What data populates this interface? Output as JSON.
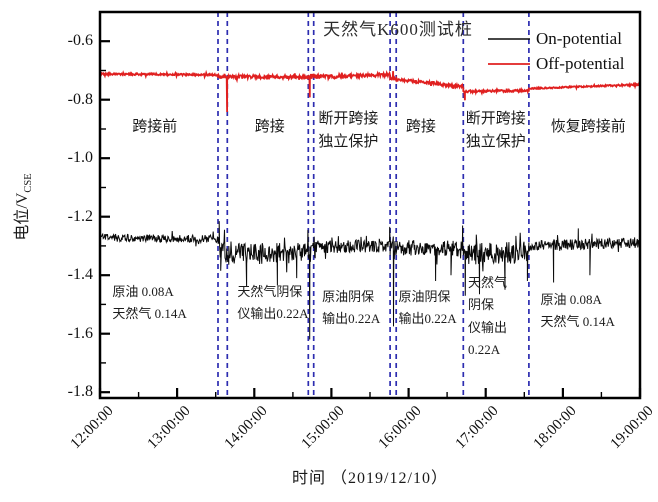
{
  "chart_data": {
    "type": "line",
    "title": "天然气K600测试桩",
    "xlabel": "时间 （2019/12/10）",
    "ylabel": "电位/V_CSE",
    "ylabel_main": "电位/V",
    "ylabel_sub": "CSE",
    "x_unit": "time HH:MM:SS",
    "xlim": [
      12,
      19
    ],
    "ylim": [
      -1.82,
      -0.5
    ],
    "grid": false,
    "x_tick_values": [
      12,
      13,
      14,
      15,
      16,
      17,
      18,
      19
    ],
    "x_tick_labels": [
      "12:00:00",
      "13:00:00",
      "14:00:00",
      "15:00:00",
      "16:00:00",
      "17:00:00",
      "18:00:00",
      "19:00:00"
    ],
    "x_minor_tick_values": [
      12.5,
      13.5,
      14.5,
      15.5,
      16.5,
      17.5,
      18.5
    ],
    "y_tick_values": [
      -0.6,
      -0.8,
      -1.0,
      -1.2,
      -1.4,
      -1.6,
      -1.8
    ],
    "y_tick_labels": [
      "-0.6",
      "-0.8",
      "-1.0",
      "-1.2",
      "-1.4",
      "-1.6",
      "-1.8"
    ],
    "y_minor_tick_values": [
      -0.7,
      -0.9,
      -1.1,
      -1.3,
      -1.5,
      -1.7
    ],
    "legend": {
      "position": "top-right",
      "entries": [
        {
          "label": "On-potential",
          "color": "#0a0a0a"
        },
        {
          "label": "Off-potential",
          "color": "#e02020"
        }
      ]
    },
    "boundary_lines": {
      "style": "dashed",
      "color": "#2d2db0",
      "times": [
        13.53,
        13.65,
        14.7,
        14.77,
        15.76,
        15.84,
        16.71,
        17.56
      ]
    },
    "phases": [
      {
        "lines": [
          "跨接前"
        ],
        "t": 12.71,
        "v": -0.895
      },
      {
        "lines": [
          "跨接"
        ],
        "t": 14.2,
        "v": -0.895
      },
      {
        "lines": [
          "断开跨接",
          "独立保护"
        ],
        "t": 15.22,
        "v": -0.906
      },
      {
        "lines": [
          "跨接"
        ],
        "t": 16.16,
        "v": -0.895
      },
      {
        "lines": [
          "断开跨接",
          "独立保护"
        ],
        "t": 17.13,
        "v": -0.906
      },
      {
        "lines": [
          "恢复跨接前"
        ],
        "t": 18.33,
        "v": -0.895
      }
    ],
    "annotations": [
      {
        "lines": [
          "原油  0.08A",
          "天然气  0.14A"
        ],
        "t": 12.16,
        "v": -1.457
      },
      {
        "lines": [
          "天然气阴保",
          "仪输出0.22A"
        ],
        "t": 13.78,
        "v": -1.457
      },
      {
        "lines": [
          "原油阴保",
          "输出0.22A"
        ],
        "t": 14.88,
        "v": -1.474
      },
      {
        "lines": [
          "原油阴保",
          "输出0.22A"
        ],
        "t": 15.87,
        "v": -1.474
      },
      {
        "lines": [
          "天然气",
          "阴保",
          "仪输出",
          "0.22A"
        ],
        "t": 16.77,
        "v": -1.426
      },
      {
        "lines": [
          "原油  0.08A",
          "天然气  0.14A"
        ],
        "t": 17.71,
        "v": -1.485
      }
    ],
    "series": [
      {
        "name": "On-potential",
        "color": "#0a0a0a",
        "width": 1,
        "seed": 11,
        "segments": [
          {
            "t0": 12.0,
            "t1": 13.53,
            "v0": -1.272,
            "v1": -1.276,
            "noise": 0.013
          },
          {
            "t0": 13.53,
            "t1": 13.67,
            "v0": -1.3,
            "v1": -1.33,
            "noise": 0.035
          },
          {
            "t0": 13.67,
            "t1": 14.7,
            "v0": -1.328,
            "v1": -1.322,
            "noise": 0.036
          },
          {
            "t0": 14.7,
            "t1": 14.79,
            "v0": -1.315,
            "v1": -1.3,
            "noise": 0.045
          },
          {
            "t0": 14.79,
            "t1": 15.76,
            "v0": -1.303,
            "v1": -1.3,
            "noise": 0.022
          },
          {
            "t0": 15.76,
            "t1": 15.85,
            "v0": -1.3,
            "v1": -1.31,
            "noise": 0.045
          },
          {
            "t0": 15.85,
            "t1": 16.71,
            "v0": -1.305,
            "v1": -1.312,
            "noise": 0.027
          },
          {
            "t0": 16.71,
            "t1": 17.56,
            "v0": -1.33,
            "v1": -1.322,
            "noise": 0.038
          },
          {
            "t0": 17.56,
            "t1": 19.0,
            "v0": -1.3,
            "v1": -1.288,
            "noise": 0.018
          }
        ],
        "spikes": [
          {
            "t": 13.545,
            "v": -1.215
          },
          {
            "t": 13.565,
            "v": -1.385
          },
          {
            "t": 13.9,
            "v": -1.44
          },
          {
            "t": 14.3,
            "v": -1.435
          },
          {
            "t": 14.55,
            "v": -1.41
          },
          {
            "t": 14.695,
            "v": -1.245
          },
          {
            "t": 14.718,
            "v": -1.62
          },
          {
            "t": 15.755,
            "v": -1.235
          },
          {
            "t": 15.805,
            "v": -1.575
          },
          {
            "t": 16.35,
            "v": -1.42
          },
          {
            "t": 16.55,
            "v": -1.4
          },
          {
            "t": 16.7,
            "v": -1.23
          },
          {
            "t": 16.735,
            "v": -1.47
          },
          {
            "t": 16.92,
            "v": -1.465
          },
          {
            "t": 17.25,
            "v": -1.45
          },
          {
            "t": 17.54,
            "v": -1.42
          },
          {
            "t": 17.88,
            "v": -1.425
          },
          {
            "t": 18.2,
            "v": -1.24
          },
          {
            "t": 18.35,
            "v": -1.4
          }
        ]
      },
      {
        "name": "Off-potential",
        "color": "#e02020",
        "width": 1.8,
        "seed": 29,
        "segments": [
          {
            "t0": 12.0,
            "t1": 13.53,
            "v0": -0.712,
            "v1": -0.715,
            "noise": 0.003
          },
          {
            "t0": 13.53,
            "t1": 14.7,
            "v0": -0.722,
            "v1": -0.722,
            "noise": 0.006
          },
          {
            "t0": 14.7,
            "t1": 15.76,
            "v0": -0.723,
            "v1": -0.714,
            "noise": 0.006
          },
          {
            "t0": 15.76,
            "t1": 16.71,
            "v0": -0.728,
            "v1": -0.756,
            "noise": 0.005
          },
          {
            "t0": 16.71,
            "t1": 17.56,
            "v0": -0.772,
            "v1": -0.769,
            "noise": 0.004
          },
          {
            "t0": 17.56,
            "t1": 19.0,
            "v0": -0.762,
            "v1": -0.748,
            "noise": 0.0025
          }
        ],
        "spikes": [
          {
            "t": 13.648,
            "v": -0.842
          },
          {
            "t": 14.72,
            "v": -0.792
          },
          {
            "t": 15.8,
            "v": -0.702
          },
          {
            "t": 16.73,
            "v": -0.802
          }
        ]
      }
    ]
  }
}
